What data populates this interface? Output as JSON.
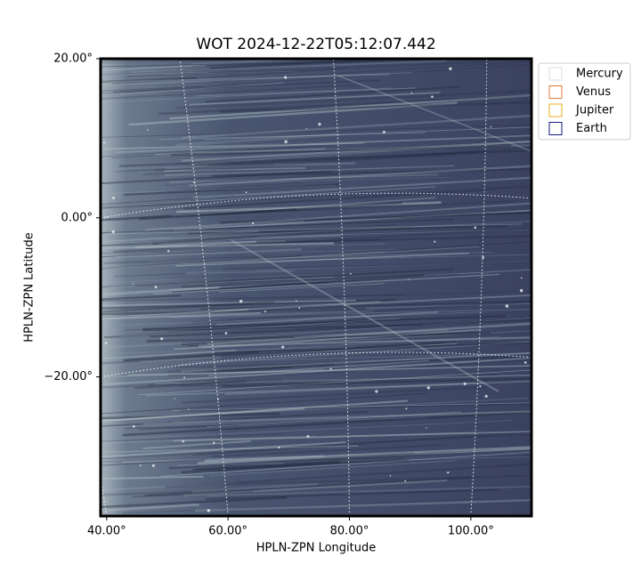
{
  "chart_data": {
    "type": "image",
    "title": "WOT 2024-12-22T05:12:07.442",
    "x_label": "HPLN-ZPN Longitude",
    "y_label": "HPLN-ZPN Latitude",
    "xlim": [
      39,
      110
    ],
    "ylim": [
      -37.5,
      20
    ],
    "xticks": [
      {
        "value": 40,
        "label": "40.00°"
      },
      {
        "value": 60,
        "label": "60.00°"
      },
      {
        "value": 80,
        "label": "80.00°"
      },
      {
        "value": 100,
        "label": "100.00°"
      }
    ],
    "yticks": [
      {
        "value": 20,
        "label": "20.00°"
      },
      {
        "value": 0,
        "label": "0.00°"
      },
      {
        "value": -20,
        "label": "−20.00°"
      }
    ],
    "grid": true,
    "legend": "upper right outside",
    "series": [
      {
        "name": "Mercury",
        "color": "#dddddd"
      },
      {
        "name": "Venus",
        "color": "#e07b39"
      },
      {
        "name": "Jupiter",
        "color": "#e8b020"
      },
      {
        "name": "Earth",
        "color": "#1a1a80"
      }
    ]
  }
}
